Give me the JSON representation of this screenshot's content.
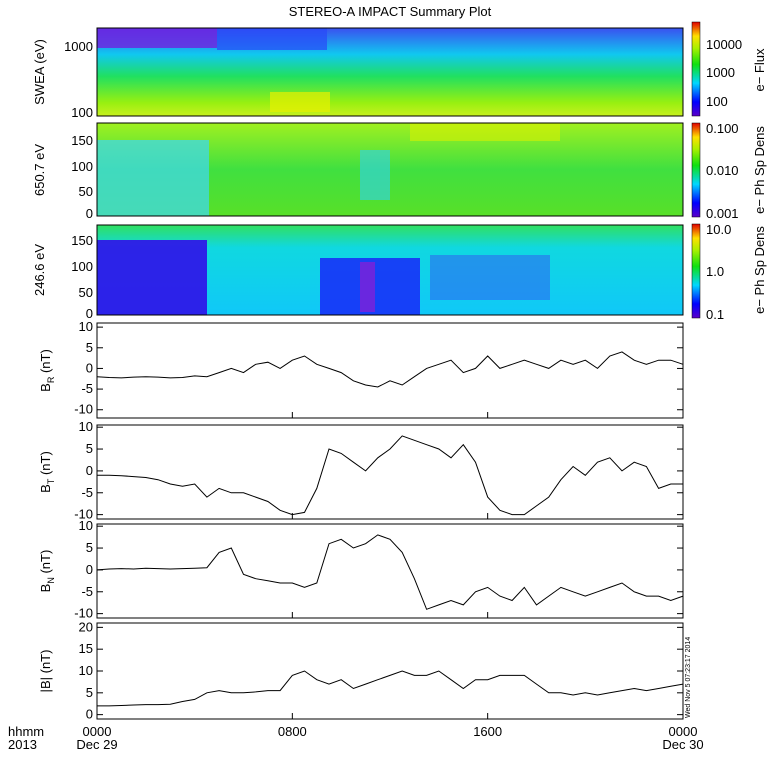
{
  "title": "STEREO-A IMPACT Summary Plot",
  "timestamp_stamp": "Wed Nov  5 07:23:17 2014",
  "time_axis": {
    "row1_label": "hhmm",
    "row2_label": "2013",
    "ticks": [
      {
        "hours": 0,
        "line1": "0000",
        "line2": "Dec 29"
      },
      {
        "hours": 8,
        "line1": "0800",
        "line2": ""
      },
      {
        "hours": 16,
        "line1": "1600",
        "line2": ""
      },
      {
        "hours": 24,
        "line1": "0000",
        "line2": "Dec 30"
      }
    ],
    "range_hours": [
      0,
      24
    ]
  },
  "spectrograms": [
    {
      "ylabel": "SWEA (eV)",
      "scale": "log",
      "yticks": [
        "1000",
        "100"
      ],
      "colorbar_label": "e− Flux",
      "colorbar_scale": "log",
      "colorbar_ticks": [
        "10000",
        "1000",
        "100"
      ],
      "palette": "rainbow"
    },
    {
      "ylabel": "650.7 eV",
      "scale": "linear",
      "yrange": [
        0,
        180
      ],
      "yticks": [
        "150",
        "100",
        "50",
        "0"
      ],
      "colorbar_label": "e− Ph Sp Dens",
      "colorbar_scale": "log",
      "colorbar_ticks": [
        "0.100",
        "0.010",
        "0.001"
      ],
      "palette": "rainbow"
    },
    {
      "ylabel": "246.6 eV",
      "scale": "linear",
      "yrange": [
        0,
        180
      ],
      "yticks": [
        "150",
        "100",
        "50",
        "0"
      ],
      "colorbar_label": "e− Ph Sp Dens",
      "colorbar_scale": "log",
      "colorbar_ticks": [
        "10.0",
        "1.0",
        "0.1"
      ],
      "palette": "rainbow"
    }
  ],
  "chart_data": [
    {
      "type": "line",
      "ylabel": "B",
      "ylabel_sub": "R",
      "ylabel_unit": "(nT)",
      "ylim": [
        -12,
        11
      ],
      "yticks": [
        10,
        5,
        0,
        -5,
        -10
      ],
      "x": [
        0,
        0.5,
        1,
        1.5,
        2,
        2.5,
        3,
        3.5,
        4,
        4.5,
        5,
        5.5,
        6,
        6.5,
        7,
        7.5,
        8,
        8.5,
        9,
        9.5,
        10,
        10.5,
        11,
        11.5,
        12,
        12.5,
        13,
        13.5,
        14,
        14.5,
        15,
        15.5,
        16,
        16.5,
        17,
        17.5,
        18,
        18.5,
        19,
        19.5,
        20,
        20.5,
        21,
        21.5,
        22,
        22.5,
        23,
        23.5,
        24
      ],
      "values": [
        -2,
        -2.2,
        -2.3,
        -2.1,
        -2,
        -2.1,
        -2.3,
        -2.2,
        -1.8,
        -2,
        -1,
        0,
        -1,
        1,
        1.5,
        0,
        2,
        3,
        1,
        0,
        -1,
        -3,
        -4,
        -4.5,
        -3,
        -4,
        -2,
        0,
        1,
        2,
        -1,
        0,
        3,
        0,
        1,
        2,
        1,
        0,
        2,
        1,
        2,
        0,
        3,
        4,
        2,
        1,
        2,
        2,
        1
      ],
      "series_color": "#000000"
    },
    {
      "type": "line",
      "ylabel": "B",
      "ylabel_sub": "T",
      "ylabel_unit": "(nT)",
      "ylim": [
        -11,
        10.5
      ],
      "yticks": [
        10,
        5,
        0,
        -5,
        -10
      ],
      "x": [
        0,
        0.5,
        1,
        1.5,
        2,
        2.5,
        3,
        3.5,
        4,
        4.5,
        5,
        5.5,
        6,
        6.5,
        7,
        7.5,
        8,
        8.5,
        9,
        9.5,
        10,
        10.5,
        11,
        11.5,
        12,
        12.5,
        13,
        13.5,
        14,
        14.5,
        15,
        15.5,
        16,
        16.5,
        17,
        17.5,
        18,
        18.5,
        19,
        19.5,
        20,
        20.5,
        21,
        21.5,
        22,
        22.5,
        23,
        23.5,
        24
      ],
      "values": [
        -1,
        -1,
        -1.1,
        -1.3,
        -1.5,
        -2,
        -3,
        -3.5,
        -3,
        -6,
        -4,
        -5,
        -5,
        -6,
        -7,
        -9,
        -10,
        -9.5,
        -4,
        5,
        4,
        2,
        0,
        3,
        5,
        8,
        7,
        6,
        5,
        3,
        6,
        2,
        -6,
        -9,
        -10,
        -10,
        -8,
        -6,
        -2,
        1,
        -1,
        2,
        3,
        0,
        2,
        1,
        -4,
        -3,
        -3
      ],
      "series_color": "#000000"
    },
    {
      "type": "line",
      "ylabel": "B",
      "ylabel_sub": "N",
      "ylabel_unit": "(nT)",
      "ylim": [
        -11,
        10.5
      ],
      "yticks": [
        10,
        5,
        0,
        -5,
        -10
      ],
      "x": [
        0,
        0.5,
        1,
        1.5,
        2,
        2.5,
        3,
        3.5,
        4,
        4.5,
        5,
        5.5,
        6,
        6.5,
        7,
        7.5,
        8,
        8.5,
        9,
        9.5,
        10,
        10.5,
        11,
        11.5,
        12,
        12.5,
        13,
        13.5,
        14,
        14.5,
        15,
        15.5,
        16,
        16.5,
        17,
        17.5,
        18,
        18.5,
        19,
        19.5,
        20,
        20.5,
        21,
        21.5,
        22,
        22.5,
        23,
        23.5,
        24
      ],
      "values": [
        0,
        0.2,
        0.3,
        0.2,
        0.4,
        0.3,
        0.2,
        0.3,
        0.4,
        0.5,
        4,
        5,
        -1,
        -2,
        -2.5,
        -3,
        -3,
        -4,
        -3,
        6,
        7,
        5,
        6,
        8,
        7,
        4,
        -2,
        -9,
        -8,
        -7,
        -8,
        -5,
        -4,
        -6,
        -7,
        -4,
        -8,
        -6,
        -4,
        -5,
        -6,
        -5,
        -4,
        -3,
        -5,
        -6,
        -6,
        -7,
        -6
      ],
      "series_color": "#000000"
    },
    {
      "type": "line",
      "ylabel": "|B|",
      "ylabel_sub": "",
      "ylabel_unit": "(nT)",
      "ylim": [
        -1,
        21
      ],
      "yticks": [
        20,
        15,
        10,
        5,
        0
      ],
      "x": [
        0,
        0.5,
        1,
        1.5,
        2,
        2.5,
        3,
        3.5,
        4,
        4.5,
        5,
        5.5,
        6,
        6.5,
        7,
        7.5,
        8,
        8.5,
        9,
        9.5,
        10,
        10.5,
        11,
        11.5,
        12,
        12.5,
        13,
        13.5,
        14,
        14.5,
        15,
        15.5,
        16,
        16.5,
        17,
        17.5,
        18,
        18.5,
        19,
        19.5,
        20,
        20.5,
        21,
        21.5,
        22,
        22.5,
        23,
        23.5,
        24
      ],
      "values": [
        2,
        2,
        2.1,
        2.2,
        2.3,
        2.3,
        2.4,
        3,
        3.5,
        5,
        5.5,
        5,
        5,
        5.2,
        5.5,
        5.5,
        9,
        10,
        8,
        7,
        8,
        6,
        7,
        8,
        9,
        10,
        9,
        9,
        10,
        8,
        6,
        8,
        8,
        9,
        9,
        9,
        7,
        5,
        5,
        4.5,
        5,
        4.5,
        5,
        5.5,
        6,
        5.5,
        6,
        6.5,
        7
      ],
      "series_color": "#000000"
    }
  ]
}
